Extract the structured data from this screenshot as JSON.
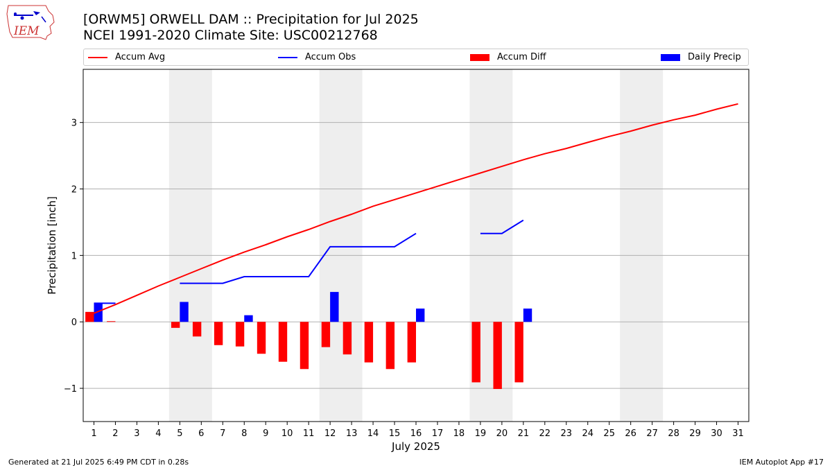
{
  "title_line1": "[ORWM5] ORWELL DAM :: Precipitation for Jul 2025",
  "title_line2": "NCEI 1991-2020 Climate Site: USC00212768",
  "logo_text": "IEM",
  "footer_left": "Generated at 21 Jul 2025 6:49 PM CDT in 0.28s",
  "footer_right": "IEM Autoplot App #17",
  "colors": {
    "avg": "#ff0000",
    "obs": "#0000ff",
    "diff": "#ff0000",
    "daily": "#0000ff",
    "weekend": "#eeeeee",
    "grid": "#b0b0b0"
  },
  "chart_data": {
    "type": "bar",
    "xlabel": "July 2025",
    "ylabel": "Precipitation [inch]",
    "xlim": [
      0.5,
      31.5
    ],
    "ylim": [
      -1.5,
      3.8
    ],
    "yticks": [
      -1,
      0,
      1,
      2,
      3
    ],
    "ytick_labels": [
      "−1",
      "0",
      "1",
      "2",
      "3"
    ],
    "grid": "horizontal",
    "legend_position": "top",
    "days": [
      1,
      2,
      3,
      4,
      5,
      6,
      7,
      8,
      9,
      10,
      11,
      12,
      13,
      14,
      15,
      16,
      17,
      18,
      19,
      20,
      21,
      22,
      23,
      24,
      25,
      26,
      27,
      28,
      29,
      30,
      31
    ],
    "weekend_spans": [
      [
        4.5,
        6.5
      ],
      [
        11.5,
        13.5
      ],
      [
        18.5,
        20.5
      ],
      [
        25.5,
        27.5
      ]
    ],
    "series": [
      {
        "name": "Accum Avg",
        "kind": "line",
        "values": [
          0.13,
          0.26,
          0.4,
          0.54,
          0.67,
          0.8,
          0.93,
          1.05,
          1.16,
          1.28,
          1.39,
          1.51,
          1.62,
          1.74,
          1.84,
          1.94,
          2.04,
          2.14,
          2.24,
          2.34,
          2.44,
          2.53,
          2.61,
          2.7,
          2.79,
          2.87,
          2.96,
          3.04,
          3.11,
          3.2,
          3.28
        ]
      },
      {
        "name": "Accum Obs",
        "kind": "line",
        "values": [
          0.28,
          0.28,
          null,
          null,
          0.58,
          0.58,
          0.58,
          0.68,
          0.68,
          0.68,
          0.68,
          1.13,
          1.13,
          1.13,
          1.13,
          1.33,
          null,
          null,
          1.33,
          1.33,
          1.53,
          null,
          null,
          null,
          null,
          null,
          null,
          null,
          null,
          null,
          null
        ]
      },
      {
        "name": "Accum Diff",
        "kind": "bar",
        "values": [
          0.15,
          0.01,
          null,
          null,
          -0.09,
          -0.22,
          -0.35,
          -0.37,
          -0.48,
          -0.6,
          -0.71,
          -0.38,
          -0.49,
          -0.61,
          -0.71,
          -0.61,
          null,
          null,
          -0.91,
          -1.01,
          -0.91,
          null,
          null,
          null,
          null,
          null,
          null,
          null,
          null,
          null,
          null
        ]
      },
      {
        "name": "Daily Precip",
        "kind": "bar",
        "values": [
          0.28,
          0.0,
          null,
          null,
          0.3,
          0.0,
          0.0,
          0.1,
          0.0,
          0.0,
          0.0,
          0.45,
          0.0,
          0.0,
          0.0,
          0.2,
          null,
          null,
          0.0,
          0.0,
          0.2,
          null,
          null,
          null,
          null,
          null,
          null,
          null,
          null,
          null,
          null
        ]
      }
    ]
  }
}
